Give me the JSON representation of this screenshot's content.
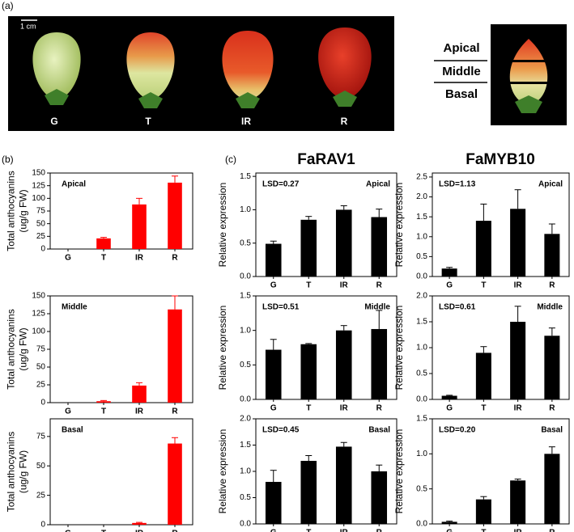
{
  "photo_panel": {
    "label": "(a)",
    "scale": "1 cm",
    "stages": [
      "G",
      "T",
      "IR",
      "R"
    ],
    "sections": [
      "Apical",
      "Middle",
      "Basal"
    ]
  },
  "panel_b": {
    "label": "(b)"
  },
  "panel_c": {
    "label": "(c)",
    "columns": [
      "FaRAV1",
      "FaMYB10"
    ]
  },
  "chart_data": [
    {
      "type": "bar",
      "title": "Apical",
      "ylabel": [
        "Total anthocyanins",
        "(ug/g FW)"
      ],
      "categories": [
        "G",
        "T",
        "IR",
        "R"
      ],
      "values": [
        0,
        21,
        88,
        131
      ],
      "errors": [
        0,
        2,
        12,
        13
      ],
      "color": "#ff0000",
      "ylim": [
        0,
        150
      ],
      "yticks": [
        0,
        25,
        50,
        75,
        100,
        125,
        150
      ]
    },
    {
      "type": "bar",
      "title": "Middle",
      "ylabel": [
        "Total anthocyanins",
        "(ug/g FW)"
      ],
      "categories": [
        "G",
        "T",
        "IR",
        "R"
      ],
      "values": [
        0,
        2,
        24,
        131
      ],
      "errors": [
        0,
        1,
        4,
        19
      ],
      "color": "#ff0000",
      "ylim": [
        0,
        150
      ],
      "yticks": [
        0,
        25,
        50,
        75,
        100,
        125,
        150
      ]
    },
    {
      "type": "bar",
      "title": "Basal",
      "ylabel": [
        "Total anthocyanins",
        "(ug/g FW)"
      ],
      "categories": [
        "G",
        "T",
        "IR",
        "R"
      ],
      "values": [
        0,
        0,
        1.5,
        69
      ],
      "errors": [
        0,
        0,
        0.5,
        5
      ],
      "color": "#ff0000",
      "ylim": [
        0,
        90
      ],
      "yticks": [
        0,
        25,
        50,
        75
      ]
    },
    {
      "type": "bar",
      "title": "Apical",
      "annotation": "LSD=0.27",
      "ylabel": [
        "Relative expression"
      ],
      "categories": [
        "G",
        "T",
        "IR",
        "R"
      ],
      "values": [
        0.49,
        0.85,
        1.0,
        0.89
      ],
      "errors": [
        0.04,
        0.05,
        0.06,
        0.12
      ],
      "color": "#000000",
      "ylim": [
        0,
        1.55
      ],
      "yticks": [
        {
          "value": 0,
          "label": "0.0"
        },
        {
          "value": 0.5,
          "label": "0.5"
        },
        {
          "value": 1,
          "label": "1.0"
        },
        {
          "value": 1.5,
          "label": "1.5"
        }
      ]
    },
    {
      "type": "bar",
      "title": "Apical",
      "annotation": "LSD=1.13",
      "ylabel": [
        "Relative expression"
      ],
      "categories": [
        "G",
        "T",
        "IR",
        "R"
      ],
      "values": [
        0.2,
        1.4,
        1.7,
        1.07
      ],
      "errors": [
        0.03,
        0.42,
        0.48,
        0.25
      ],
      "color": "#000000",
      "ylim": [
        0,
        2.6
      ],
      "yticks": [
        {
          "value": 0,
          "label": "0.0"
        },
        {
          "value": 0.5,
          "label": "0.5"
        },
        {
          "value": 1,
          "label": "1.0"
        },
        {
          "value": 1.5,
          "label": "1.5"
        },
        {
          "value": 2,
          "label": "2.0"
        },
        {
          "value": 2.5,
          "label": "2.5"
        }
      ]
    },
    {
      "type": "bar",
      "title": "Middle",
      "annotation": "LSD=0.51",
      "ylabel": [
        "Relative expression"
      ],
      "categories": [
        "G",
        "T",
        "IR",
        "R"
      ],
      "values": [
        0.72,
        0.8,
        1.0,
        1.02
      ],
      "errors": [
        0.15,
        0.01,
        0.07,
        0.27
      ],
      "color": "#000000",
      "ylim": [
        0,
        1.5
      ],
      "yticks": [
        {
          "value": 0,
          "label": "0.0"
        },
        {
          "value": 0.5,
          "label": "0.5"
        },
        {
          "value": 1,
          "label": "1.0"
        },
        {
          "value": 1.5,
          "label": "1.5"
        }
      ]
    },
    {
      "type": "bar",
      "title": "Middle",
      "annotation": "LSD=0.61",
      "ylabel": [
        "Relative expression"
      ],
      "categories": [
        "G",
        "T",
        "IR",
        "R"
      ],
      "values": [
        0.07,
        0.9,
        1.5,
        1.23
      ],
      "errors": [
        0.01,
        0.12,
        0.3,
        0.15
      ],
      "color": "#000000",
      "ylim": [
        0,
        2.0
      ],
      "yticks": [
        {
          "value": 0,
          "label": "0.0"
        },
        {
          "value": 0.5,
          "label": "0.5"
        },
        {
          "value": 1,
          "label": "1.0"
        },
        {
          "value": 1.5,
          "label": "1.5"
        },
        {
          "value": 2,
          "label": "2.0"
        }
      ]
    },
    {
      "type": "bar",
      "title": "Basal",
      "annotation": "LSD=0.45",
      "ylabel": [
        "Relative expression"
      ],
      "categories": [
        "G",
        "T",
        "IR",
        "R"
      ],
      "values": [
        0.8,
        1.2,
        1.47,
        1.0
      ],
      "errors": [
        0.22,
        0.1,
        0.08,
        0.12
      ],
      "color": "#000000",
      "ylim": [
        0,
        2.0
      ],
      "yticks": [
        {
          "value": 0,
          "label": "0.0"
        },
        {
          "value": 0.5,
          "label": "0.5"
        },
        {
          "value": 1,
          "label": "1.0"
        },
        {
          "value": 1.5,
          "label": "1.5"
        },
        {
          "value": 2,
          "label": "2.0"
        }
      ]
    },
    {
      "type": "bar",
      "title": "Basal",
      "annotation": "LSD=0.20",
      "ylabel": [
        "Relative expression"
      ],
      "categories": [
        "G",
        "T",
        "IR",
        "R"
      ],
      "values": [
        0.03,
        0.35,
        0.62,
        1.0
      ],
      "errors": [
        0.01,
        0.04,
        0.02,
        0.1
      ],
      "color": "#000000",
      "ylim": [
        0,
        1.5
      ],
      "yticks": [
        {
          "value": 0,
          "label": "0.0"
        },
        {
          "value": 0.5,
          "label": "0.5"
        },
        {
          "value": 1,
          "label": "1.0"
        },
        {
          "value": 1.5,
          "label": "1.5"
        }
      ]
    }
  ]
}
